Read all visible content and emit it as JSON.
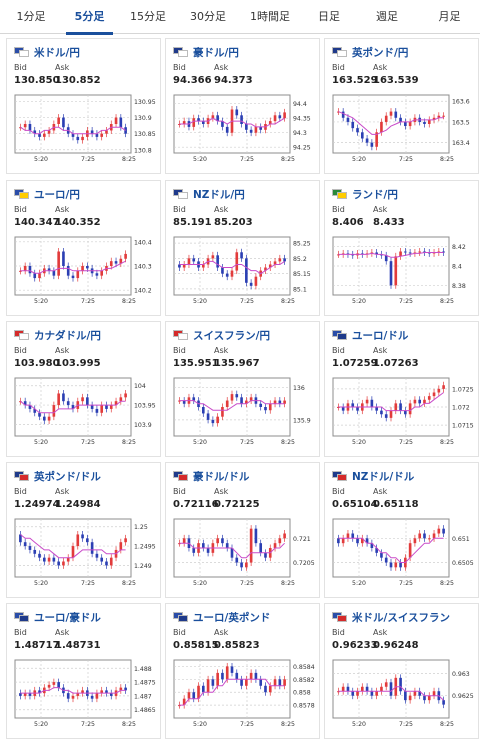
{
  "tabs": [
    {
      "label": "1分足",
      "active": false
    },
    {
      "label": "5分足",
      "active": true
    },
    {
      "label": "15分足",
      "active": false
    },
    {
      "label": "30分足",
      "active": false
    },
    {
      "label": "1時間足",
      "active": false
    },
    {
      "label": "日足",
      "active": false
    },
    {
      "label": "週足",
      "active": false
    },
    {
      "label": "月足",
      "active": false
    }
  ],
  "labels": {
    "bid": "Bid",
    "ask": "Ask"
  },
  "colors": {
    "up": "#e23b3b",
    "down": "#2b3fb3",
    "ma": "#c94bc9",
    "grid": "#cfcfcf",
    "frame": "#8c8c8c",
    "accent": "#1a4f9c"
  },
  "chart_data": [
    {
      "type": "candlestick",
      "pair": "米ドル/円",
      "flags": [
        "#2a4da8",
        "#ffffff"
      ],
      "bid": "130.850",
      "ask": "130.852",
      "x_ticks": [
        "5:20",
        "7:25",
        "8:25"
      ],
      "y_ticks": [
        "130.95",
        "130.9",
        "130.85",
        "130.8"
      ],
      "ylim": [
        130.79,
        130.97
      ],
      "closes": [
        130.87,
        130.88,
        130.86,
        130.85,
        130.84,
        130.85,
        130.86,
        130.88,
        130.9,
        130.87,
        130.85,
        130.84,
        130.83,
        130.84,
        130.86,
        130.85,
        130.84,
        130.85,
        130.86,
        130.88,
        130.9,
        130.87,
        130.85
      ],
      "ma": [
        130.87,
        130.86,
        130.86,
        130.85,
        130.85,
        130.86,
        130.86,
        130.87,
        130.87,
        130.86,
        130.86,
        130.85,
        130.85,
        130.85,
        130.85,
        130.85,
        130.85,
        130.86,
        130.86,
        130.87,
        130.87,
        130.87,
        130.86
      ]
    },
    {
      "type": "candlestick",
      "pair": "豪ドル/円",
      "flags": [
        "#1f3a8a",
        "#ffffff"
      ],
      "bid": "94.366",
      "ask": "94.373",
      "x_ticks": [
        "5:20",
        "7:25",
        "8:25"
      ],
      "y_ticks": [
        "94.4",
        "94.35",
        "94.3",
        "94.25"
      ],
      "ylim": [
        94.23,
        94.43
      ],
      "closes": [
        94.33,
        94.34,
        94.32,
        94.35,
        94.34,
        94.33,
        94.35,
        94.36,
        94.34,
        94.32,
        94.3,
        94.38,
        94.36,
        94.33,
        94.31,
        94.3,
        94.32,
        94.31,
        94.33,
        94.34,
        94.36,
        94.35,
        94.37
      ],
      "ma": [
        94.33,
        94.33,
        94.33,
        94.34,
        94.34,
        94.34,
        94.34,
        94.35,
        94.34,
        94.34,
        94.33,
        94.34,
        94.34,
        94.34,
        94.33,
        94.33,
        94.32,
        94.32,
        94.32,
        94.33,
        94.33,
        94.34,
        94.35
      ]
    },
    {
      "type": "candlestick",
      "pair": "英ポンド/円",
      "flags": [
        "#1f3a8a",
        "#ffffff"
      ],
      "bid": "163.529",
      "ask": "163.539",
      "x_ticks": [
        "5:20",
        "7:25",
        "8:25"
      ],
      "y_ticks": [
        "163.6",
        "163.5",
        "163.4"
      ],
      "ylim": [
        163.35,
        163.63
      ],
      "closes": [
        163.55,
        163.52,
        163.5,
        163.47,
        163.45,
        163.42,
        163.4,
        163.38,
        163.45,
        163.5,
        163.53,
        163.55,
        163.52,
        163.5,
        163.48,
        163.5,
        163.52,
        163.5,
        163.49,
        163.51,
        163.52,
        163.53,
        163.53
      ],
      "ma": [
        163.55,
        163.54,
        163.53,
        163.52,
        163.5,
        163.48,
        163.46,
        163.44,
        163.44,
        163.45,
        163.46,
        163.48,
        163.49,
        163.5,
        163.5,
        163.5,
        163.51,
        163.51,
        163.51,
        163.51,
        163.51,
        163.52,
        163.52
      ]
    },
    {
      "type": "candlestick",
      "pair": "ユーロ/円",
      "flags": [
        "#2a4da8",
        "#ffcc00"
      ],
      "bid": "140.347",
      "ask": "140.352",
      "x_ticks": [
        "5:20",
        "7:25",
        "8:25"
      ],
      "y_ticks": [
        "140.4",
        "140.3",
        "140.2"
      ],
      "ylim": [
        140.18,
        140.42
      ],
      "closes": [
        140.28,
        140.3,
        140.27,
        140.25,
        140.27,
        140.29,
        140.28,
        140.26,
        140.36,
        140.3,
        140.26,
        140.25,
        140.28,
        140.3,
        140.29,
        140.27,
        140.26,
        140.28,
        140.3,
        140.32,
        140.31,
        140.33,
        140.35
      ],
      "ma": [
        140.28,
        140.28,
        140.28,
        140.27,
        140.27,
        140.28,
        140.28,
        140.28,
        140.29,
        140.29,
        140.29,
        140.28,
        140.28,
        140.28,
        140.28,
        140.28,
        140.28,
        140.28,
        140.29,
        140.29,
        140.3,
        140.31,
        140.32
      ]
    },
    {
      "type": "candlestick",
      "pair": "NZドル/円",
      "flags": [
        "#1f3a8a",
        "#ffffff"
      ],
      "bid": "85.191",
      "ask": "85.203",
      "x_ticks": [
        "5:20",
        "7:25",
        "8:25"
      ],
      "y_ticks": [
        "85.25",
        "85.2",
        "85.15",
        "85.1"
      ],
      "ylim": [
        85.08,
        85.27
      ],
      "closes": [
        85.17,
        85.18,
        85.2,
        85.19,
        85.17,
        85.18,
        85.2,
        85.21,
        85.17,
        85.15,
        85.14,
        85.16,
        85.22,
        85.2,
        85.12,
        85.11,
        85.14,
        85.16,
        85.17,
        85.18,
        85.19,
        85.2,
        85.19
      ],
      "ma": [
        85.18,
        85.18,
        85.18,
        85.18,
        85.18,
        85.18,
        85.19,
        85.19,
        85.18,
        85.17,
        85.17,
        85.17,
        85.18,
        85.18,
        85.17,
        85.16,
        85.16,
        85.15,
        85.16,
        85.17,
        85.18,
        85.18,
        85.19
      ]
    },
    {
      "type": "candlestick",
      "pair": "ランド/円",
      "flags": [
        "#2a8a3a",
        "#ffcc00"
      ],
      "bid": "8.406",
      "ask": "8.433",
      "x_ticks": [
        "5:20",
        "7:25",
        "8:25"
      ],
      "y_ticks": [
        "8.42",
        "8.4",
        "8.38"
      ],
      "ylim": [
        8.37,
        8.43
      ],
      "closes": [
        8.412,
        8.413,
        8.412,
        8.411,
        8.413,
        8.412,
        8.413,
        8.414,
        8.412,
        8.411,
        8.405,
        8.38,
        8.41,
        8.415,
        8.414,
        8.413,
        8.414,
        8.415,
        8.414,
        8.413,
        8.414,
        8.415,
        8.414
      ],
      "ma": [
        8.412,
        8.412,
        8.412,
        8.412,
        8.412,
        8.412,
        8.412,
        8.413,
        8.412,
        8.412,
        8.411,
        8.409,
        8.409,
        8.41,
        8.411,
        8.412,
        8.413,
        8.413,
        8.414,
        8.414,
        8.414,
        8.414,
        8.414
      ]
    },
    {
      "type": "candlestick",
      "pair": "カナダドル/円",
      "flags": [
        "#d42a2a",
        "#ffffff"
      ],
      "bid": "103.980",
      "ask": "103.995",
      "x_ticks": [
        "5:20",
        "7:25",
        "8:25"
      ],
      "y_ticks": [
        "104",
        "103.95",
        "103.9"
      ],
      "ylim": [
        103.87,
        104.02
      ],
      "closes": [
        103.96,
        103.95,
        103.94,
        103.93,
        103.92,
        103.91,
        103.92,
        103.95,
        103.98,
        103.96,
        103.95,
        103.94,
        103.96,
        103.97,
        103.95,
        103.94,
        103.93,
        103.95,
        103.94,
        103.95,
        103.96,
        103.97,
        103.98
      ],
      "ma": [
        103.96,
        103.95,
        103.95,
        103.94,
        103.93,
        103.93,
        103.93,
        103.93,
        103.94,
        103.94,
        103.94,
        103.94,
        103.95,
        103.95,
        103.95,
        103.95,
        103.95,
        103.95,
        103.95,
        103.95,
        103.95,
        103.96,
        103.96
      ]
    },
    {
      "type": "candlestick",
      "pair": "スイスフラン/円",
      "flags": [
        "#d42a2a",
        "#ffffff"
      ],
      "bid": "135.951",
      "ask": "135.967",
      "x_ticks": [
        "5:20",
        "7:25",
        "8:25"
      ],
      "y_ticks": [
        "136",
        "135.9"
      ],
      "ylim": [
        135.85,
        136.03
      ],
      "closes": [
        135.96,
        135.95,
        135.97,
        135.96,
        135.94,
        135.92,
        135.9,
        135.89,
        135.91,
        135.94,
        135.96,
        135.98,
        135.97,
        135.95,
        135.96,
        135.97,
        135.95,
        135.94,
        135.93,
        135.95,
        135.96,
        135.95,
        135.96
      ],
      "ma": [
        135.96,
        135.96,
        135.96,
        135.96,
        135.95,
        135.95,
        135.94,
        135.93,
        135.93,
        135.93,
        135.93,
        135.94,
        135.95,
        135.95,
        135.95,
        135.96,
        135.96,
        135.96,
        135.95,
        135.95,
        135.95,
        135.95,
        135.95
      ]
    },
    {
      "type": "candlestick",
      "pair": "ユーロ/ドル",
      "flags": [
        "#2a4da8",
        "#1f3a8a"
      ],
      "bid": "1.07259",
      "ask": "1.07263",
      "x_ticks": [
        "5:20",
        "7:25",
        "8:25"
      ],
      "y_ticks": [
        "1.0725",
        "1.072",
        "1.0715"
      ],
      "ylim": [
        1.0712,
        1.0728
      ],
      "closes": [
        1.072,
        1.0719,
        1.0721,
        1.072,
        1.0719,
        1.0721,
        1.0722,
        1.072,
        1.0719,
        1.0718,
        1.0717,
        1.0719,
        1.0721,
        1.0719,
        1.0718,
        1.0721,
        1.0722,
        1.0721,
        1.0722,
        1.0723,
        1.0724,
        1.0725,
        1.0726
      ],
      "ma": [
        1.072,
        1.072,
        1.072,
        1.072,
        1.072,
        1.072,
        1.072,
        1.072,
        1.072,
        1.072,
        1.0719,
        1.0719,
        1.0719,
        1.0719,
        1.0719,
        1.0719,
        1.072,
        1.072,
        1.0721,
        1.0721,
        1.0722,
        1.0723,
        1.0724
      ]
    },
    {
      "type": "candlestick",
      "pair": "英ポンド/ドル",
      "flags": [
        "#1f3a8a",
        "#d42a2a"
      ],
      "bid": "1.24974",
      "ask": "1.24984",
      "x_ticks": [
        "5:20",
        "7:25",
        "8:25"
      ],
      "y_ticks": [
        "1.25",
        "1.2495",
        "1.249"
      ],
      "ylim": [
        1.2487,
        1.2502
      ],
      "closes": [
        1.2496,
        1.2495,
        1.2494,
        1.2493,
        1.2492,
        1.2491,
        1.2492,
        1.2491,
        1.249,
        1.2491,
        1.2492,
        1.2495,
        1.2498,
        1.2497,
        1.2496,
        1.2493,
        1.2492,
        1.2491,
        1.249,
        1.2492,
        1.2494,
        1.2496,
        1.2497
      ],
      "ma": [
        1.2498,
        1.2497,
        1.2497,
        1.2496,
        1.2495,
        1.2494,
        1.2494,
        1.2493,
        1.2492,
        1.2492,
        1.2492,
        1.2492,
        1.2493,
        1.2494,
        1.2494,
        1.2494,
        1.2494,
        1.2494,
        1.2493,
        1.2493,
        1.2493,
        1.2494,
        1.2494
      ]
    },
    {
      "type": "candlestick",
      "pair": "豪ドル/ドル",
      "flags": [
        "#1f3a8a",
        "#d42a2a"
      ],
      "bid": "0.72116",
      "ask": "0.72125",
      "x_ticks": [
        "5:20",
        "7:25",
        "8:25"
      ],
      "y_ticks": [
        "0.721",
        "0.7205"
      ],
      "ylim": [
        0.7202,
        0.7214
      ],
      "closes": [
        0.7209,
        0.721,
        0.7208,
        0.7207,
        0.7209,
        0.7208,
        0.7207,
        0.7209,
        0.721,
        0.7209,
        0.7208,
        0.7206,
        0.7205,
        0.7204,
        0.7205,
        0.7212,
        0.7209,
        0.7207,
        0.7206,
        0.7208,
        0.7209,
        0.721,
        0.7211
      ],
      "ma": [
        0.7209,
        0.7209,
        0.7209,
        0.7208,
        0.7208,
        0.7208,
        0.7208,
        0.7208,
        0.7208,
        0.7208,
        0.7208,
        0.7208,
        0.7207,
        0.7206,
        0.7206,
        0.7207,
        0.7207,
        0.7207,
        0.7207,
        0.7207,
        0.7208,
        0.7208,
        0.7209
      ]
    },
    {
      "type": "candlestick",
      "pair": "NZドル/ドル",
      "flags": [
        "#1f3a8a",
        "#d42a2a"
      ],
      "bid": "0.65104",
      "ask": "0.65118",
      "x_ticks": [
        "5:20",
        "7:25",
        "8:25"
      ],
      "y_ticks": [
        "0.651",
        "0.6505"
      ],
      "ylim": [
        0.6502,
        0.6514
      ],
      "closes": [
        0.6509,
        0.651,
        0.6511,
        0.651,
        0.6509,
        0.651,
        0.6509,
        0.6508,
        0.6507,
        0.6506,
        0.6505,
        0.6504,
        0.6505,
        0.6504,
        0.6506,
        0.6509,
        0.651,
        0.6511,
        0.651,
        0.651,
        0.6511,
        0.6512,
        0.6511
      ],
      "ma": [
        0.651,
        0.651,
        0.651,
        0.651,
        0.651,
        0.651,
        0.6509,
        0.6509,
        0.6508,
        0.6507,
        0.6507,
        0.6506,
        0.6506,
        0.6505,
        0.6505,
        0.6506,
        0.6507,
        0.6508,
        0.6509,
        0.6509,
        0.651,
        0.651,
        0.651
      ]
    },
    {
      "type": "candlestick",
      "pair": "ユーロ/豪ドル",
      "flags": [
        "#2a4da8",
        "#1f3a8a"
      ],
      "bid": "1.48717",
      "ask": "1.48731",
      "x_ticks": [
        "5:20",
        "7:25",
        "8:25"
      ],
      "y_ticks": [
        "1.488",
        "1.4875",
        "1.487",
        "1.4865"
      ],
      "ylim": [
        1.4862,
        1.4883
      ],
      "closes": [
        1.487,
        1.4871,
        1.487,
        1.4872,
        1.4871,
        1.4873,
        1.4874,
        1.4875,
        1.4873,
        1.4871,
        1.4869,
        1.487,
        1.4871,
        1.4872,
        1.487,
        1.4869,
        1.4871,
        1.4872,
        1.4871,
        1.487,
        1.4872,
        1.4873,
        1.4872
      ],
      "ma": [
        1.4871,
        1.4871,
        1.4871,
        1.4871,
        1.4871,
        1.4872,
        1.4872,
        1.4873,
        1.4873,
        1.4872,
        1.4872,
        1.4871,
        1.4871,
        1.4871,
        1.4871,
        1.4871,
        1.4871,
        1.4871,
        1.4871,
        1.4871,
        1.4871,
        1.4872,
        1.4872
      ]
    },
    {
      "type": "candlestick",
      "pair": "ユーロ/英ポンド",
      "flags": [
        "#2a4da8",
        "#1f3a8a"
      ],
      "bid": "0.85815",
      "ask": "0.85823",
      "x_ticks": [
        "5:20",
        "7:25",
        "8:25"
      ],
      "y_ticks": [
        "0.8584",
        "0.8582",
        "0.858",
        "0.8578"
      ],
      "ylim": [
        0.8576,
        0.8585
      ],
      "closes": [
        0.8578,
        0.8579,
        0.858,
        0.8579,
        0.8581,
        0.858,
        0.8582,
        0.8581,
        0.8583,
        0.8582,
        0.8584,
        0.8583,
        0.8582,
        0.8581,
        0.8582,
        0.8583,
        0.8582,
        0.8581,
        0.858,
        0.8581,
        0.8582,
        0.8581,
        0.8582
      ],
      "ma": [
        0.8578,
        0.8578,
        0.8579,
        0.8579,
        0.8579,
        0.858,
        0.858,
        0.858,
        0.8581,
        0.8581,
        0.8582,
        0.8582,
        0.8582,
        0.8582,
        0.8582,
        0.8582,
        0.8582,
        0.8582,
        0.8582,
        0.8581,
        0.8581,
        0.8581,
        0.8581
      ]
    },
    {
      "type": "candlestick",
      "pair": "米ドル/スイスフラン",
      "flags": [
        "#2a4da8",
        "#d42a2a"
      ],
      "bid": "0.96233",
      "ask": "0.96248",
      "x_ticks": [
        "5:20",
        "7:25",
        "8:25"
      ],
      "y_ticks": [
        "0.963",
        "0.9625"
      ],
      "ylim": [
        0.962,
        0.9633
      ],
      "closes": [
        0.9626,
        0.9627,
        0.9626,
        0.9625,
        0.9626,
        0.9627,
        0.9626,
        0.9625,
        0.9626,
        0.9627,
        0.9628,
        0.9625,
        0.9629,
        0.9626,
        0.9624,
        0.9625,
        0.9626,
        0.9625,
        0.9624,
        0.9625,
        0.9626,
        0.9624,
        0.9623
      ],
      "ma": [
        0.9626,
        0.9626,
        0.9626,
        0.9626,
        0.9626,
        0.9626,
        0.9626,
        0.9626,
        0.9626,
        0.9626,
        0.9626,
        0.9626,
        0.9627,
        0.9627,
        0.9626,
        0.9626,
        0.9626,
        0.9626,
        0.9625,
        0.9625,
        0.9625,
        0.9625,
        0.9624
      ]
    }
  ]
}
